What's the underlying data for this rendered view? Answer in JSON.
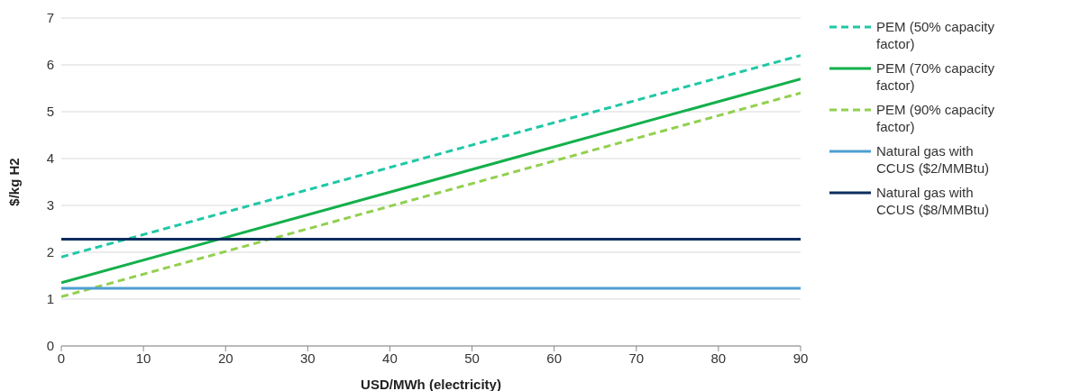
{
  "chart_data": {
    "type": "line",
    "xlabel": "USD/MWh (electricity)",
    "ylabel": "$/kg H2",
    "x": [
      0,
      90
    ],
    "series": [
      {
        "name": "PEM (50% capacity factor)",
        "color": "#1fc8a5",
        "line_style": "dashed",
        "values": [
          1.9,
          6.2
        ]
      },
      {
        "name": "PEM (70% capacity factor)",
        "color": "#13b04b",
        "line_style": "solid",
        "values": [
          1.35,
          5.7
        ]
      },
      {
        "name": "PEM (90% capacity factor)",
        "color": "#92d050",
        "line_style": "dashed",
        "values": [
          1.05,
          5.4
        ]
      },
      {
        "name": "Natural gas with CCUS ($2/MMBtu)",
        "color": "#4f9fd2",
        "line_style": "solid",
        "values": [
          1.23,
          1.23
        ]
      },
      {
        "name": "Natural gas with CCUS ($8/MMBtu)",
        "color": "#0c2d5e",
        "line_style": "solid",
        "values": [
          2.28,
          2.28
        ]
      }
    ],
    "xlim": [
      0,
      90
    ],
    "xticks": [
      0,
      10,
      20,
      30,
      40,
      50,
      60,
      70,
      80,
      90
    ],
    "ylim": [
      0,
      7
    ],
    "yticks": [
      0,
      1,
      2,
      3,
      4,
      5,
      6,
      7
    ],
    "grid": "y",
    "legend": "right",
    "marker": "none"
  }
}
